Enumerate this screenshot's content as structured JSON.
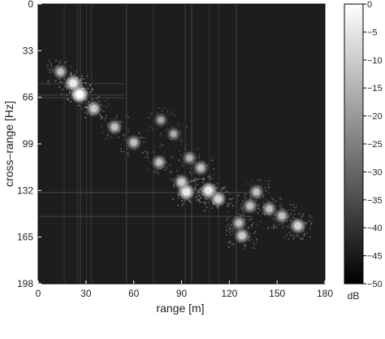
{
  "chart_data": {
    "type": "heatmap",
    "xlabel": "range [m]",
    "ylabel": "cross–range [Hz]",
    "xlim": [
      0,
      180
    ],
    "ylim": [
      0,
      198
    ],
    "y_inverted": true,
    "xticks": [
      "0",
      "30",
      "60",
      "90",
      "120",
      "150",
      "180"
    ],
    "yticks": [
      "0",
      "33",
      "66",
      "99",
      "132",
      "165",
      "198"
    ],
    "colorbar": {
      "label": "dB",
      "range": [
        -50,
        0
      ],
      "ticks": [
        "0",
        "−5",
        "−10",
        "−15",
        "−20",
        "−25",
        "−30",
        "−35",
        "−40",
        "−45",
        "−50"
      ],
      "colormap": "gray"
    },
    "scatterers": [
      {
        "range": 26,
        "cross_range": 64,
        "intensity_db": 0
      },
      {
        "range": 22,
        "cross_range": 56,
        "intensity_db": -5
      },
      {
        "range": 14,
        "cross_range": 48,
        "intensity_db": -15
      },
      {
        "range": 35,
        "cross_range": 74,
        "intensity_db": -12
      },
      {
        "range": 48,
        "cross_range": 87,
        "intensity_db": -15
      },
      {
        "range": 60,
        "cross_range": 98,
        "intensity_db": -15
      },
      {
        "range": 76,
        "cross_range": 112,
        "intensity_db": -15
      },
      {
        "range": 90,
        "cross_range": 126,
        "intensity_db": -12
      },
      {
        "range": 93,
        "cross_range": 133,
        "intensity_db": -5
      },
      {
        "range": 107,
        "cross_range": 132,
        "intensity_db": -5
      },
      {
        "range": 113,
        "cross_range": 138,
        "intensity_db": -10
      },
      {
        "range": 95,
        "cross_range": 109,
        "intensity_db": -18
      },
      {
        "range": 77,
        "cross_range": 82,
        "intensity_db": -20
      },
      {
        "range": 85,
        "cross_range": 92,
        "intensity_db": -20
      },
      {
        "range": 102,
        "cross_range": 116,
        "intensity_db": -15
      },
      {
        "range": 137,
        "cross_range": 133,
        "intensity_db": -15
      },
      {
        "range": 145,
        "cross_range": 145,
        "intensity_db": -15
      },
      {
        "range": 153,
        "cross_range": 150,
        "intensity_db": -15
      },
      {
        "range": 163,
        "cross_range": 157,
        "intensity_db": -10
      },
      {
        "range": 126,
        "cross_range": 155,
        "intensity_db": -15
      },
      {
        "range": 128,
        "cross_range": 164,
        "intensity_db": -12
      },
      {
        "range": 133,
        "cross_range": 143,
        "intensity_db": -15
      }
    ],
    "vertical_streaks_range": [
      16,
      24,
      26,
      30,
      33,
      55,
      72,
      92,
      96,
      107,
      113,
      124
    ],
    "horizontal_streaks_cross_range": [
      56,
      64,
      66,
      133,
      150
    ]
  }
}
